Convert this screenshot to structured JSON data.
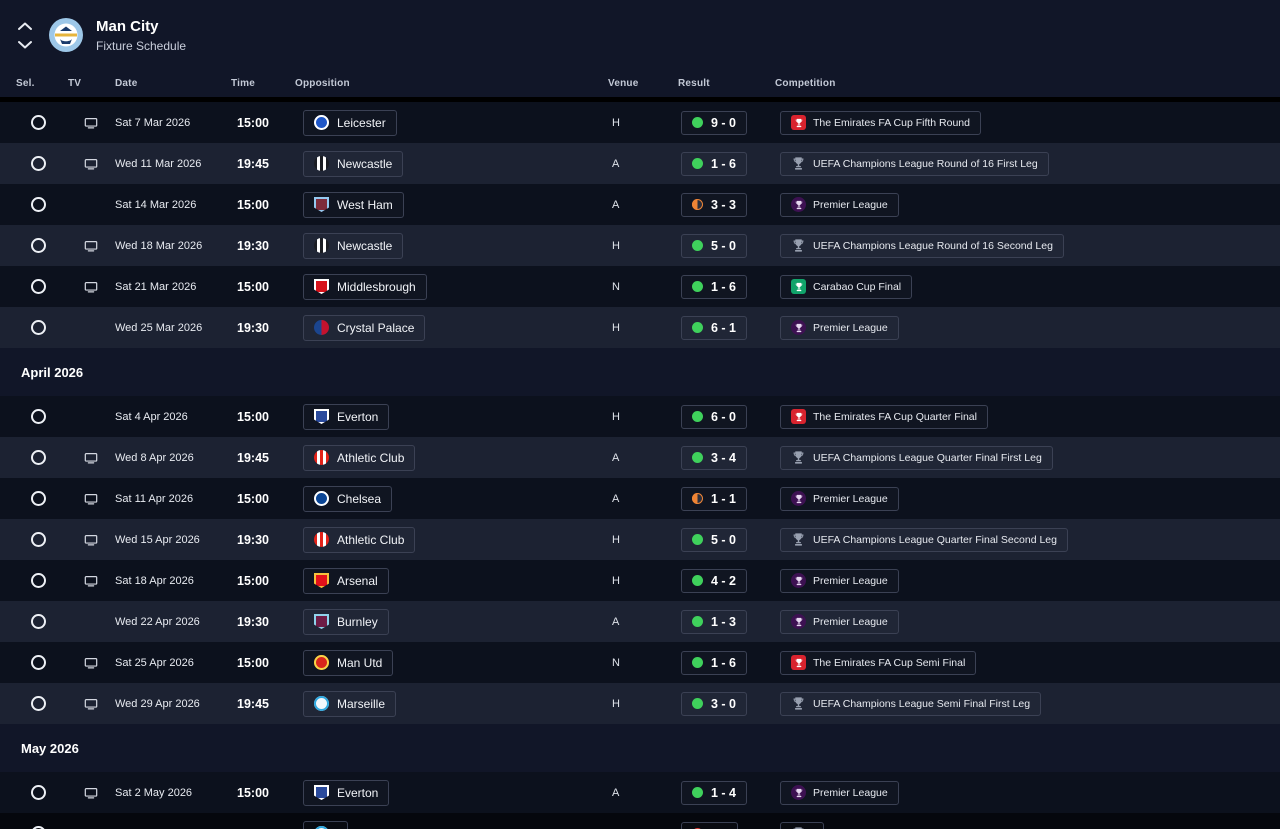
{
  "header": {
    "team": "Man City",
    "subtitle": "Fixture Schedule"
  },
  "columns": {
    "sel": "Sel.",
    "tv": "TV",
    "date": "Date",
    "time": "Time",
    "opposition": "Opposition",
    "venue": "Venue",
    "result": "Result",
    "competition": "Competition"
  },
  "colors": {
    "win_dot": "#3fd15c",
    "draw_dot": "#ee8435",
    "loss_dot": "#e03a31",
    "row_alt": "#1c2232",
    "row_base": "#0c111d"
  },
  "badges": {
    "Leicester": {
      "type": "circle",
      "c1": "#1e56c8",
      "c2": "#ffffff"
    },
    "Newcastle": {
      "type": "stripes",
      "c1": "#1a1c22",
      "c2": "#ffffff"
    },
    "West Ham": {
      "type": "shield",
      "c1": "#7d2c3b",
      "c2": "#95c9f0"
    },
    "Middlesbrough": {
      "type": "shield",
      "c1": "#d6131c",
      "c2": "#ffffff"
    },
    "Crystal Palace": {
      "type": "halves",
      "c1": "#1b458f",
      "c2": "#c4122e"
    },
    "Everton": {
      "type": "shield",
      "c1": "#2a4a9c",
      "c2": "#ffffff"
    },
    "Athletic Club": {
      "type": "stripes",
      "c1": "#e32219",
      "c2": "#ffffff"
    },
    "Chelsea": {
      "type": "circle",
      "c1": "#0a4595",
      "c2": "#ffffff"
    },
    "Arsenal": {
      "type": "shield",
      "c1": "#e3111a",
      "c2": "#f6c13d"
    },
    "Burnley": {
      "type": "shield",
      "c1": "#6d1c45",
      "c2": "#8fd2ea"
    },
    "Man Utd": {
      "type": "circle",
      "c1": "#d8251c",
      "c2": "#f7d547"
    },
    "Marseille": {
      "type": "circle",
      "c1": "#f2f7fb",
      "c2": "#2fa8df"
    }
  },
  "comp_icons": {
    "fa_cup": {
      "bg": "#d8232e",
      "fg": "#ffffff"
    },
    "ucl": {
      "fg": "#98a0b0"
    },
    "premier_league": {
      "bg": "#3d1152",
      "fg": "#e8d9f2",
      "round": true
    },
    "carabao": {
      "bg": "#10a36a",
      "fg": "#ffffff"
    }
  },
  "sections": [
    {
      "label": "",
      "rows": [
        {
          "tv": true,
          "date": "Sat 7 Mar 2026",
          "time": "15:00",
          "opponent": "Leicester",
          "badge": "Leicester",
          "venue": "H",
          "result": "win",
          "score": "9 - 0",
          "competition": "The Emirates FA Cup Fifth Round",
          "comp_icon": "fa_cup"
        },
        {
          "tv": true,
          "date": "Wed 11 Mar 2026",
          "time": "19:45",
          "opponent": "Newcastle",
          "badge": "Newcastle",
          "venue": "A",
          "result": "win",
          "score": "1 - 6",
          "competition": "UEFA Champions League Round of 16  First Leg",
          "comp_icon": "ucl"
        },
        {
          "tv": false,
          "date": "Sat 14 Mar 2026",
          "time": "15:00",
          "opponent": "West Ham",
          "badge": "West Ham",
          "venue": "A",
          "result": "draw",
          "score": "3 - 3",
          "competition": "Premier League",
          "comp_icon": "premier_league"
        },
        {
          "tv": true,
          "date": "Wed 18 Mar 2026",
          "time": "19:30",
          "opponent": "Newcastle",
          "badge": "Newcastle",
          "venue": "H",
          "result": "win",
          "score": "5 - 0",
          "competition": "UEFA Champions League Round of 16  Second Leg",
          "comp_icon": "ucl"
        },
        {
          "tv": true,
          "date": "Sat 21 Mar 2026",
          "time": "15:00",
          "opponent": "Middlesbrough",
          "badge": "Middlesbrough",
          "venue": "N",
          "result": "win",
          "score": "1 - 6",
          "competition": "Carabao Cup Final",
          "comp_icon": "carabao"
        },
        {
          "tv": false,
          "date": "Wed 25 Mar 2026",
          "time": "19:30",
          "opponent": "Crystal Palace",
          "badge": "Crystal Palace",
          "venue": "H",
          "result": "win",
          "score": "6 - 1",
          "competition": "Premier League",
          "comp_icon": "premier_league"
        }
      ]
    },
    {
      "label": "April 2026",
      "rows": [
        {
          "tv": false,
          "date": "Sat 4 Apr 2026",
          "time": "15:00",
          "opponent": "Everton",
          "badge": "Everton",
          "venue": "H",
          "result": "win",
          "score": "6 - 0",
          "competition": "The Emirates FA Cup Quarter Final",
          "comp_icon": "fa_cup"
        },
        {
          "tv": true,
          "date": "Wed 8 Apr 2026",
          "time": "19:45",
          "opponent": "Athletic Club",
          "badge": "Athletic Club",
          "venue": "A",
          "result": "win",
          "score": "3 - 4",
          "competition": "UEFA Champions League Quarter Final First Leg",
          "comp_icon": "ucl"
        },
        {
          "tv": true,
          "date": "Sat 11 Apr 2026",
          "time": "15:00",
          "opponent": "Chelsea",
          "badge": "Chelsea",
          "venue": "A",
          "result": "draw",
          "score": "1 - 1",
          "competition": "Premier League",
          "comp_icon": "premier_league"
        },
        {
          "tv": true,
          "date": "Wed 15 Apr 2026",
          "time": "19:30",
          "opponent": "Athletic Club",
          "badge": "Athletic Club",
          "venue": "H",
          "result": "win",
          "score": "5 - 0",
          "competition": "UEFA Champions League Quarter Final Second Leg",
          "comp_icon": "ucl"
        },
        {
          "tv": true,
          "date": "Sat 18 Apr 2026",
          "time": "15:00",
          "opponent": "Arsenal",
          "badge": "Arsenal",
          "venue": "H",
          "result": "win",
          "score": "4 - 2",
          "competition": "Premier League",
          "comp_icon": "premier_league"
        },
        {
          "tv": false,
          "date": "Wed 22 Apr 2026",
          "time": "19:30",
          "opponent": "Burnley",
          "badge": "Burnley",
          "venue": "A",
          "result": "win",
          "score": "1 - 3",
          "competition": "Premier League",
          "comp_icon": "premier_league"
        },
        {
          "tv": true,
          "date": "Sat 25 Apr 2026",
          "time": "15:00",
          "opponent": "Man Utd",
          "badge": "Man Utd",
          "venue": "N",
          "result": "win",
          "score": "1 - 6",
          "competition": "The Emirates FA Cup Semi Final",
          "comp_icon": "fa_cup"
        },
        {
          "tv": true,
          "date": "Wed 29 Apr 2026",
          "time": "19:45",
          "opponent": "Marseille",
          "badge": "Marseille",
          "venue": "H",
          "result": "win",
          "score": "3 - 0",
          "competition": "UEFA Champions League Semi Final First Leg",
          "comp_icon": "ucl"
        }
      ]
    },
    {
      "label": "May 2026",
      "rows": [
        {
          "tv": true,
          "date": "Sat 2 May 2026",
          "time": "15:00",
          "opponent": "Everton",
          "badge": "Everton",
          "venue": "A",
          "result": "win",
          "score": "1 - 4",
          "competition": "Premier League",
          "comp_icon": "premier_league"
        },
        {
          "tv": true,
          "date": "",
          "time": "",
          "opponent": "",
          "badge": "Marseille",
          "venue": "",
          "result": "loss",
          "score": "",
          "competition": "",
          "comp_icon": "ucl",
          "partial": true
        }
      ]
    }
  ]
}
